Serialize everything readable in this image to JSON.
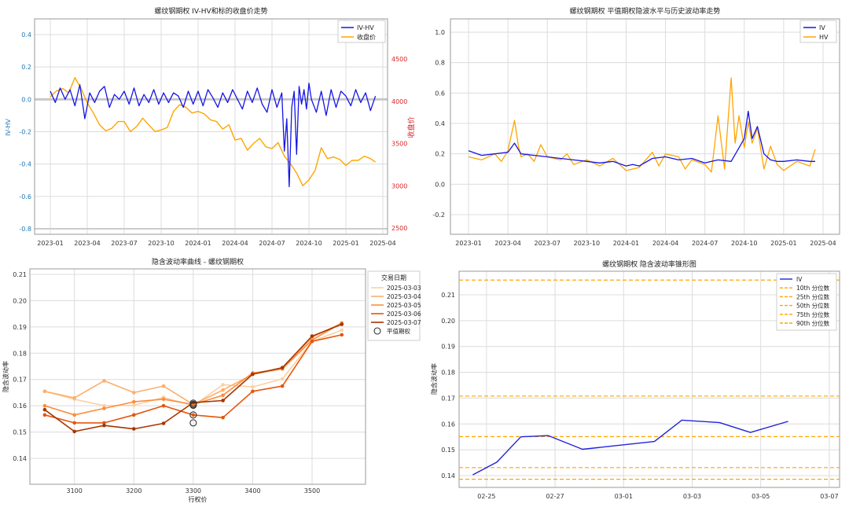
{
  "chart_data": [
    {
      "type": "line",
      "title": "螺纹钢期权 IV-HV和标的收盘价走势",
      "ylabel": "IV-HV",
      "ylabel_right": "收盘价",
      "x_ticks": [
        "2023-01",
        "2023-04",
        "2023-07",
        "2023-10",
        "2024-01",
        "2024-04",
        "2024-07",
        "2024-10",
        "2025-01",
        "2025-04"
      ],
      "y_ticks": [
        "0.4",
        "0.2",
        "0.0",
        "-0.2",
        "-0.4",
        "-0.6",
        "-0.8"
      ],
      "y_ticks_right": [
        "4500",
        "4000",
        "3500",
        "3000",
        "2500"
      ],
      "ylim": [
        -0.85,
        0.5
      ],
      "ylim_right": [
        2450,
        4950
      ],
      "legend": [
        "IV-HV",
        "收盘价"
      ],
      "series": [
        {
          "name": "IV-HV",
          "color": "#1515e6",
          "x_months": [
            0,
            0.4,
            0.8,
            1.2,
            1.6,
            2.0,
            2.4,
            2.8,
            3.2,
            3.6,
            4.0,
            4.4,
            4.8,
            5.2,
            5.6,
            6.0,
            6.4,
            6.8,
            7.2,
            7.6,
            8.0,
            8.4,
            8.8,
            9.2,
            9.6,
            10.0,
            10.4,
            10.8,
            11.2,
            11.6,
            12.0,
            12.4,
            12.8,
            13.2,
            13.6,
            14.0,
            14.4,
            14.8,
            15.2,
            15.6,
            16.0,
            16.4,
            16.8,
            17.2,
            17.6,
            18.0,
            18.4,
            18.8,
            19.0,
            19.2,
            19.4,
            19.6,
            19.8,
            20.0,
            20.2,
            20.4,
            20.6,
            20.8,
            21.0,
            21.2,
            21.6,
            22.0,
            22.4,
            22.8,
            23.2,
            23.6,
            24.0,
            24.4,
            24.8,
            25.2,
            25.6,
            26.0,
            26.4
          ],
          "values": [
            0.05,
            -0.02,
            0.07,
            0.0,
            0.06,
            -0.04,
            0.09,
            -0.12,
            0.04,
            -0.02,
            0.05,
            0.08,
            -0.05,
            0.03,
            0.0,
            0.05,
            -0.03,
            0.07,
            -0.04,
            0.03,
            -0.02,
            0.06,
            -0.03,
            0.04,
            -0.02,
            0.04,
            0.02,
            -0.05,
            0.05,
            -0.03,
            0.05,
            -0.04,
            0.06,
            0.01,
            -0.05,
            0.04,
            -0.02,
            0.06,
            0.0,
            -0.06,
            0.05,
            -0.02,
            0.07,
            -0.03,
            -0.08,
            0.06,
            -0.05,
            0.04,
            -0.32,
            -0.12,
            -0.54,
            -0.05,
            0.05,
            -0.34,
            0.08,
            -0.03,
            0.06,
            -0.06,
            0.1,
            0.0,
            -0.08,
            0.05,
            -0.1,
            0.06,
            -0.05,
            0.05,
            0.02,
            -0.04,
            0.06,
            -0.02,
            0.04,
            -0.07,
            0.02
          ]
        },
        {
          "name": "收盘价",
          "color": "#ffa500",
          "x_months": [
            0,
            0.5,
            1.0,
            1.5,
            2.0,
            2.5,
            3.0,
            3.5,
            4.0,
            4.5,
            5.0,
            5.5,
            6.0,
            6.5,
            7.0,
            7.5,
            8.0,
            8.5,
            9.0,
            9.5,
            10.0,
            10.5,
            11.0,
            11.5,
            12.0,
            12.5,
            13.0,
            13.5,
            14.0,
            14.5,
            15.0,
            15.5,
            16.0,
            16.5,
            17.0,
            17.5,
            18.0,
            18.5,
            19.0,
            19.5,
            20.0,
            20.5,
            21.0,
            21.5,
            22.0,
            22.5,
            23.0,
            23.5,
            24.0,
            24.5,
            25.0,
            25.5,
            26.0,
            26.4
          ],
          "values": [
            4050,
            4120,
            4150,
            4100,
            4280,
            4150,
            3980,
            3860,
            3720,
            3650,
            3680,
            3760,
            3760,
            3640,
            3700,
            3800,
            3720,
            3640,
            3660,
            3690,
            3880,
            3960,
            3930,
            3860,
            3880,
            3850,
            3780,
            3760,
            3670,
            3720,
            3540,
            3560,
            3420,
            3500,
            3560,
            3460,
            3440,
            3510,
            3350,
            3260,
            3150,
            3000,
            3070,
            3180,
            3450,
            3320,
            3340,
            3310,
            3240,
            3300,
            3300,
            3350,
            3320,
            3280
          ]
        }
      ]
    },
    {
      "type": "line",
      "title": "螺纹钢期权 平值期权隐波水平与历史波动率走势",
      "x_ticks": [
        "2023-01",
        "2023-04",
        "2023-07",
        "2023-10",
        "2024-01",
        "2024-04",
        "2024-07",
        "2024-10",
        "2025-01",
        "2025-04"
      ],
      "y_ticks": [
        "1.0",
        "0.8",
        "0.6",
        "0.4",
        "0.2",
        "0.0",
        "-0.2"
      ],
      "ylim": [
        -0.33,
        1.1
      ],
      "legend": [
        "IV",
        "HV"
      ],
      "series": [
        {
          "name": "IV",
          "color": "#1515e6",
          "x_months": [
            0,
            1,
            2,
            3,
            3.5,
            4,
            5,
            6,
            7,
            8,
            9,
            10,
            11,
            12,
            12.5,
            13,
            14,
            15,
            16,
            17,
            18,
            18.5,
            19,
            20,
            21,
            21.3,
            21.6,
            22,
            22.5,
            23,
            23.5,
            24,
            25,
            26,
            26.4
          ],
          "values": [
            0.22,
            0.19,
            0.2,
            0.21,
            0.27,
            0.2,
            0.19,
            0.18,
            0.17,
            0.16,
            0.15,
            0.14,
            0.15,
            0.12,
            0.13,
            0.12,
            0.17,
            0.18,
            0.16,
            0.17,
            0.14,
            0.15,
            0.16,
            0.15,
            0.3,
            0.48,
            0.3,
            0.38,
            0.2,
            0.16,
            0.15,
            0.15,
            0.16,
            0.15,
            0.15
          ]
        },
        {
          "name": "HV",
          "color": "#ffa500",
          "x_months": [
            0,
            1,
            2,
            2.5,
            3,
            3.5,
            3.8,
            4,
            4.5,
            5,
            5.5,
            6,
            7,
            7.5,
            8,
            9,
            10,
            11,
            11.5,
            12,
            13,
            14,
            14.5,
            15,
            16,
            16.5,
            17,
            18,
            18.5,
            19,
            19.5,
            20,
            20.3,
            20.6,
            21,
            21.3,
            21.6,
            22,
            22.5,
            23,
            23.5,
            24,
            25,
            26,
            26.4
          ],
          "values": [
            0.18,
            0.16,
            0.2,
            0.15,
            0.22,
            0.42,
            0.25,
            0.18,
            0.2,
            0.15,
            0.26,
            0.18,
            0.16,
            0.2,
            0.13,
            0.16,
            0.12,
            0.17,
            0.13,
            0.09,
            0.11,
            0.21,
            0.12,
            0.2,
            0.18,
            0.1,
            0.16,
            0.13,
            0.08,
            0.45,
            0.1,
            0.7,
            0.27,
            0.45,
            0.24,
            0.41,
            0.27,
            0.37,
            0.1,
            0.25,
            0.13,
            0.09,
            0.15,
            0.12,
            0.23
          ]
        }
      ]
    },
    {
      "type": "line",
      "title": "隐含波动率曲线 - 螺纹钢期权",
      "xlabel": "行权价",
      "ylabel": "隐含波动率",
      "x_ticks": [
        "3100",
        "3200",
        "3300",
        "3400",
        "3500"
      ],
      "y_ticks": [
        "0.21",
        "0.20",
        "0.19",
        "0.18",
        "0.17",
        "0.16",
        "0.15",
        "0.14"
      ],
      "xlim": [
        3025,
        3590
      ],
      "ylim": [
        0.13,
        0.212
      ],
      "legend_title": "交易日期",
      "atm_label": "平值期权",
      "strikes": [
        3050,
        3100,
        3150,
        3200,
        3250,
        3300,
        3350,
        3400,
        3450,
        3500,
        3550
      ],
      "atm_strike": 3300,
      "series": [
        {
          "name": "2025-03-03",
          "color": "#fdd0a2",
          "values": [
            0.1655,
            0.1625,
            0.16,
            0.1602,
            0.1632,
            0.16,
            0.168,
            0.1672,
            0.1702,
            0.1845,
            0.1888
          ]
        },
        {
          "name": "2025-03-04",
          "color": "#fdae6b",
          "values": [
            0.1655,
            0.163,
            0.1695,
            0.165,
            0.1675,
            0.1605,
            0.166,
            0.172,
            0.174,
            0.186,
            0.1915
          ]
        },
        {
          "name": "2025-03-05",
          "color": "#fd8d3c",
          "values": [
            0.16,
            0.1565,
            0.159,
            0.1615,
            0.1625,
            0.1605,
            0.164,
            0.1725,
            0.174,
            0.185,
            0.1915
          ]
        },
        {
          "name": "2025-03-06",
          "color": "#e6550d",
          "values": [
            0.1565,
            0.1535,
            0.1535,
            0.1565,
            0.16,
            0.1565,
            0.1555,
            0.1655,
            0.1675,
            0.1845,
            0.187
          ]
        },
        {
          "name": "2025-03-07",
          "color": "#a63603",
          "values": [
            0.1585,
            0.1502,
            0.1525,
            0.1512,
            0.1533,
            0.1612,
            0.162,
            0.172,
            0.1745,
            0.1865,
            0.191
          ]
        }
      ],
      "atm_values": [
        0.1535,
        0.1565,
        0.1605,
        0.161,
        0.1602
      ]
    },
    {
      "type": "line",
      "title": "螺纹钢期权 隐含波动率锥形图",
      "ylabel": "隐含波动率",
      "x_ticks": [
        "02-25",
        "02-27",
        "03-01",
        "03-03",
        "03-05",
        "03-07"
      ],
      "y_ticks": [
        "0.21",
        "0.20",
        "0.19",
        "0.18",
        "0.17",
        "0.16",
        "0.15",
        "0.14"
      ],
      "ylim": [
        0.135,
        0.218
      ],
      "xlim_days": [
        -0.8,
        10.3
      ],
      "legend": [
        "IV",
        "10th 分位数",
        "25th 分位数",
        "50th 分位数",
        "75th 分位数",
        "90th 分位数"
      ],
      "series": [
        {
          "name": "IV",
          "color": "#2222dd",
          "x_days": [
            -0.4,
            0.3,
            1.0,
            1.8,
            2.8,
            4.9,
            5.7,
            6.8,
            7.7,
            8.8
          ],
          "values": [
            0.1403,
            0.1452,
            0.155,
            0.1555,
            0.1502,
            0.1532,
            0.1615,
            0.1605,
            0.1567,
            0.161
          ]
        }
      ],
      "percentiles": [
        {
          "name": "10th 分位数",
          "value": 0.1386
        },
        {
          "name": "25th 分位数",
          "value": 0.1431
        },
        {
          "name": "50th 分位数",
          "value": 0.1551
        },
        {
          "name": "75th 分位数",
          "value": 0.1708
        },
        {
          "name": "90th 分位数",
          "value": 0.2157
        }
      ]
    }
  ]
}
